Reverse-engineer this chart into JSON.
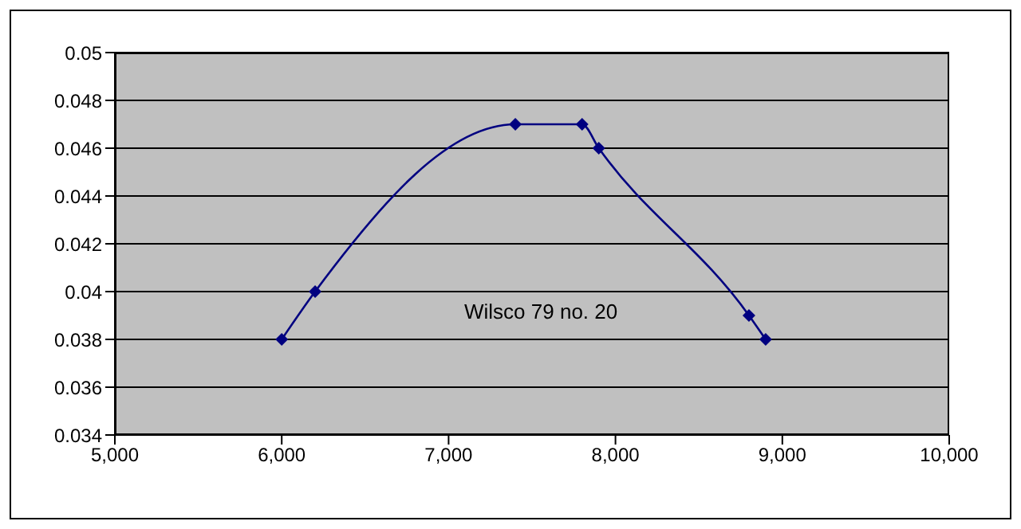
{
  "chart_data": {
    "type": "line",
    "x": [
      6000,
      6200,
      7400,
      7800,
      7900,
      8800,
      8900
    ],
    "series": [
      {
        "color": "#000080",
        "values": [
          0.038,
          0.04,
          0.047,
          0.047,
          0.046,
          0.039,
          0.038
        ]
      }
    ],
    "xlim": [
      5000,
      10000
    ],
    "xticks": [
      {
        "value": 5000,
        "label": "5,000"
      },
      {
        "value": 6000,
        "label": "6,000"
      },
      {
        "value": 7000,
        "label": "7,000"
      },
      {
        "value": 8000,
        "label": "8,000"
      },
      {
        "value": 9000,
        "label": "9,000"
      },
      {
        "value": 10000,
        "label": "10,000"
      }
    ],
    "ylim": [
      0.034,
      0.05
    ],
    "yticks": [
      0.034,
      0.036,
      0.038,
      0.04,
      0.042,
      0.044,
      0.046,
      0.048,
      0.05
    ],
    "grid": "y",
    "marker": "diamond",
    "legend": false,
    "annotations": [
      "Wilsco 79 no. 20"
    ]
  }
}
